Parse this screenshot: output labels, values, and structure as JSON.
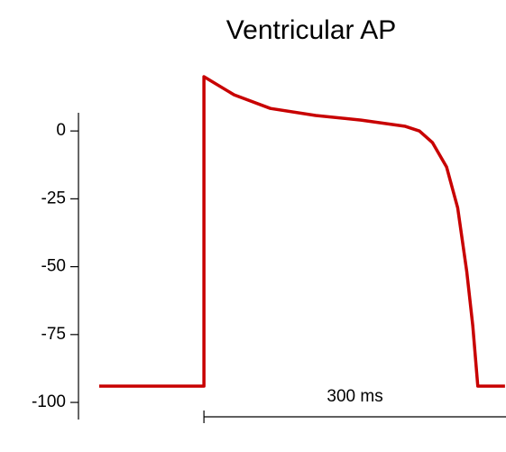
{
  "chart_data": {
    "type": "line",
    "title": "Ventricular AP",
    "x": [
      -104,
      0,
      0,
      30,
      66,
      111,
      156,
      200,
      214,
      227,
      241,
      252,
      261,
      267,
      272,
      299
    ],
    "values": [
      -94,
      -94,
      20,
      13.3,
      8.3,
      5.7,
      4,
      1.7,
      0,
      -4.3,
      -13.3,
      -28.3,
      -51.7,
      -71.7,
      -94,
      -94
    ],
    "color": "#c80000",
    "xlim": [
      -104,
      300
    ],
    "ylim": [
      -106.3,
      6.7
    ],
    "yticks": [
      0,
      -25,
      -50,
      -75,
      -100
    ],
    "scale_bar": {
      "value": 300,
      "label": "300 ms"
    }
  }
}
